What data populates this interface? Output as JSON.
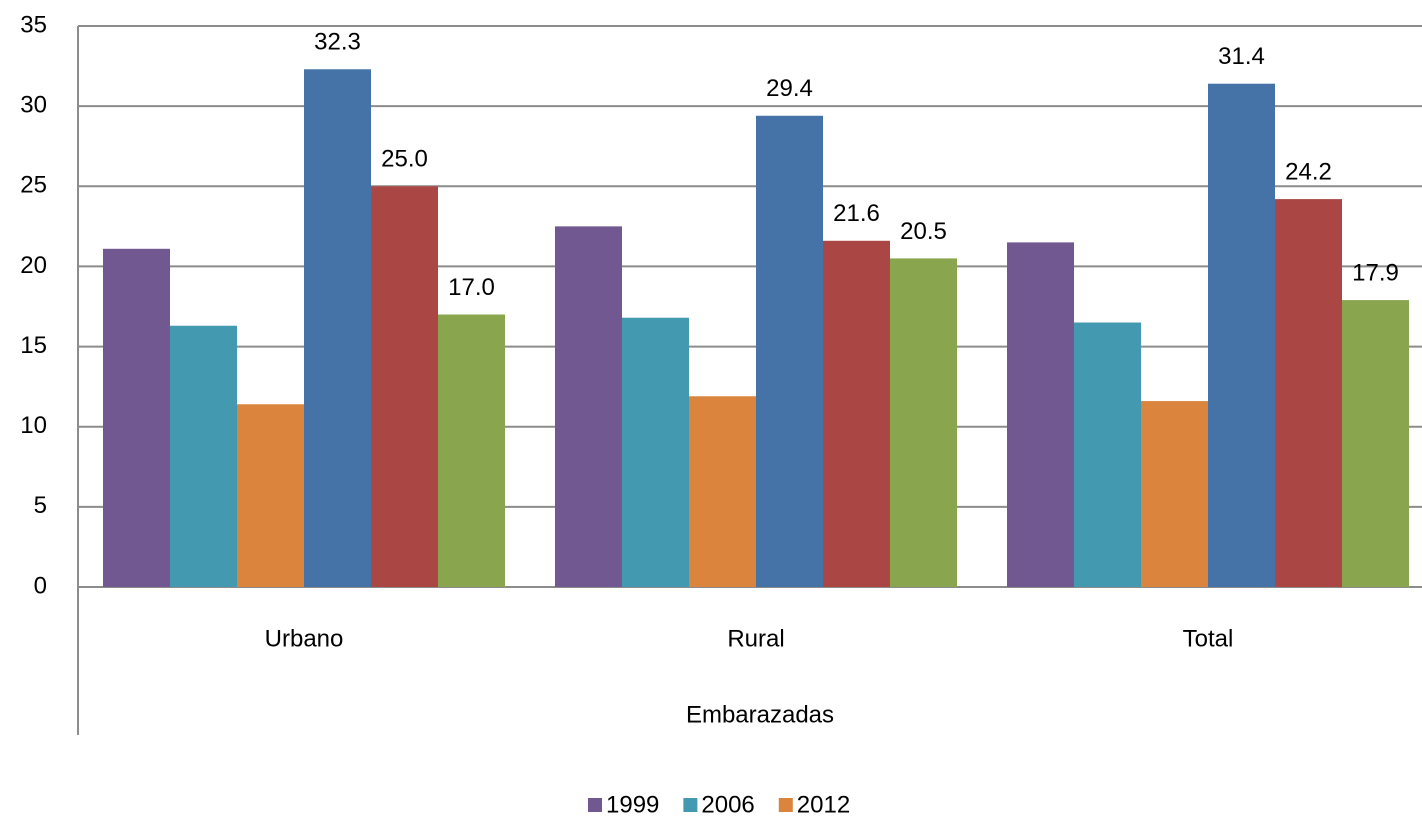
{
  "chart_data": {
    "type": "bar",
    "categories": [
      "Urbano",
      "Rural",
      "Total"
    ],
    "x_label": "Embarazadas",
    "series": [
      {
        "name": "1999",
        "color": "#725891",
        "values": [
          21.1,
          22.5,
          21.5
        ]
      },
      {
        "name": "2006",
        "color": "#4299b0",
        "values": [
          16.3,
          16.8,
          16.5
        ]
      },
      {
        "name": "2012",
        "color": "#db843d",
        "values": [
          11.4,
          11.9,
          11.6
        ]
      },
      {
        "color": "#4572a7",
        "values": [
          32.3,
          29.4,
          31.4
        ],
        "value_labels": [
          "32.3",
          "29.4",
          "31.4"
        ]
      },
      {
        "color": "#aa4643",
        "values": [
          25.0,
          21.6,
          24.2
        ],
        "value_labels": [
          "25.0",
          "21.6",
          "24.2"
        ]
      },
      {
        "color": "#89a54e",
        "values": [
          17.0,
          20.5,
          17.9
        ],
        "value_labels": [
          "17.0",
          "20.5",
          "17.9"
        ]
      }
    ],
    "ylim": [
      0,
      35
    ],
    "yticks": [
      0,
      5,
      10,
      15,
      20,
      25,
      30,
      35
    ],
    "grid": true,
    "legend": "bottom"
  }
}
